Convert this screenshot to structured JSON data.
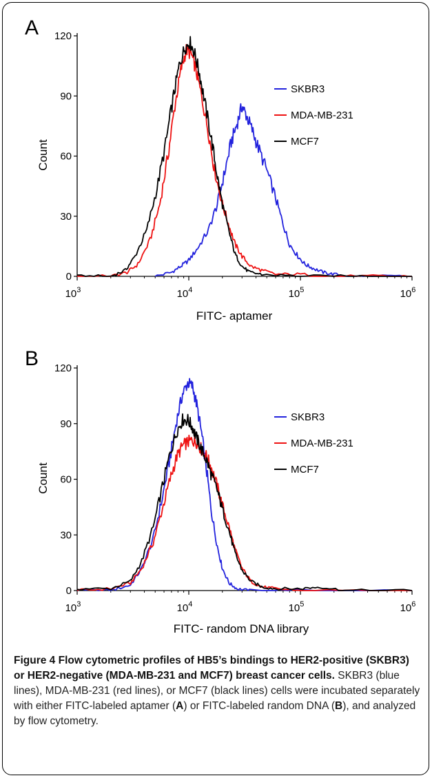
{
  "caption": {
    "bold": "Figure 4 Flow cytometric profiles of HB5’s bindings to HER2-positive (SKBR3) or HER2-negative (MDA-MB-231 and MCF7) breast cancer cells.",
    "p1": " SKBR3 (blue lines), MDA-MB-231 (red lines), or MCF7 (black lines) cells were incubated separately with either FITC-labeled aptamer (",
    "bA": "A",
    "p2": ") or FITC-labeled random DNA (",
    "bB": "B",
    "p3": "), and analyzed by flow cytometry."
  },
  "colors": {
    "SKBR3": "#2222dd",
    "MDA-MB-231": "#ee1111",
    "MCF7": "#000000"
  },
  "chart_data": [
    {
      "type": "line",
      "panel_label": "A",
      "xlabel": "FITC- aptamer",
      "ylabel": "Count",
      "xscale": "log",
      "xlim": [
        1000,
        1000000
      ],
      "ylim": [
        0,
        120
      ],
      "xticks": [
        {
          "v": 1000,
          "b": "10",
          "e": "3"
        },
        {
          "v": 10000,
          "b": "10",
          "e": "4"
        },
        {
          "v": 100000,
          "b": "10",
          "e": "5"
        },
        {
          "v": 1000000,
          "b": "10",
          "e": "6"
        }
      ],
      "yticks": [
        0,
        30,
        60,
        90,
        120
      ],
      "legend": "right",
      "series": [
        {
          "name": "SKBR3",
          "color": "#2222dd",
          "x": [
            5000,
            7000,
            8500,
            10000,
            12000,
            15000,
            18000,
            21000,
            24000,
            27000,
            30000,
            33000,
            37000,
            42000,
            50000,
            60000,
            70000,
            80000,
            95000,
            110000,
            130000,
            160000,
            200000,
            300000,
            500000,
            1000000
          ],
          "y": [
            0,
            2,
            5,
            8,
            14,
            23,
            36,
            52,
            67,
            76,
            85,
            80,
            73,
            64,
            53,
            39,
            26,
            16,
            10,
            6,
            4,
            2,
            1,
            0,
            0,
            0
          ]
        },
        {
          "name": "MDA-MB-231",
          "color": "#ee1111",
          "x": [
            1000,
            2000,
            2800,
            3500,
            4500,
            5500,
            6500,
            7500,
            8500,
            9500,
            10500,
            11500,
            13000,
            15000,
            17000,
            20000,
            23000,
            26000,
            30000,
            36000,
            45000,
            60000,
            100000,
            200000,
            500000,
            1000000
          ],
          "y": [
            0,
            0,
            2,
            6,
            18,
            36,
            60,
            85,
            103,
            113,
            111,
            104,
            90,
            72,
            53,
            36,
            25,
            16,
            10,
            5,
            3,
            1,
            1,
            0,
            0,
            0
          ]
        },
        {
          "name": "MCF7",
          "color": "#000000",
          "x": [
            1000,
            2000,
            2700,
            3300,
            4200,
            5200,
            6200,
            7200,
            8200,
            9200,
            10200,
            11200,
            12500,
            14000,
            16000,
            18000,
            20000,
            23000,
            26000,
            30000,
            35000,
            45000,
            100000,
            300000,
            1000000
          ],
          "y": [
            0,
            0,
            3,
            10,
            23,
            44,
            66,
            88,
            105,
            114,
            117,
            112,
            101,
            86,
            68,
            50,
            36,
            22,
            11,
            5,
            2,
            1,
            0,
            0,
            0
          ]
        }
      ]
    },
    {
      "type": "line",
      "panel_label": "B",
      "xlabel": "FITC- random DNA library",
      "ylabel": "Count",
      "xscale": "log",
      "xlim": [
        1000,
        1000000
      ],
      "ylim": [
        0,
        120
      ],
      "xticks": [
        {
          "v": 1000,
          "b": "10",
          "e": "3"
        },
        {
          "v": 10000,
          "b": "10",
          "e": "4"
        },
        {
          "v": 100000,
          "b": "10",
          "e": "5"
        },
        {
          "v": 1000000,
          "b": "10",
          "e": "6"
        }
      ],
      "yticks": [
        0,
        30,
        60,
        90,
        120
      ],
      "legend": "right",
      "series": [
        {
          "name": "SKBR3",
          "color": "#2222dd",
          "x": [
            1000,
            2000,
            3000,
            3800,
            4800,
            5800,
            6800,
            7800,
            8800,
            9800,
            10800,
            11800,
            13000,
            14500,
            16000,
            18000,
            20000,
            23000,
            27000,
            35000,
            100000,
            1000000
          ],
          "y": [
            0,
            0,
            3,
            12,
            28,
            50,
            72,
            92,
            106,
            112,
            110,
            100,
            85,
            64,
            42,
            24,
            12,
            4,
            1,
            0,
            0,
            0
          ]
        },
        {
          "name": "MDA-MB-231",
          "color": "#ee1111",
          "x": [
            1000,
            2000,
            3000,
            3800,
            4800,
            5800,
            6800,
            7800,
            8800,
            9800,
            10800,
            11800,
            13000,
            14500,
            16000,
            18000,
            20000,
            23000,
            26000,
            30000,
            36000,
            45000,
            60000,
            100000,
            1000000
          ],
          "y": [
            0,
            1,
            4,
            12,
            26,
            44,
            60,
            72,
            78,
            80,
            81,
            80,
            76,
            72,
            66,
            56,
            46,
            34,
            22,
            12,
            5,
            2,
            1,
            0,
            0
          ]
        },
        {
          "name": "MCF7",
          "color": "#000000",
          "x": [
            1000,
            2000,
            3000,
            3800,
            4800,
            5800,
            6800,
            7800,
            8800,
            9800,
            10800,
            11800,
            13000,
            14500,
            16000,
            18000,
            20000,
            23000,
            26000,
            30000,
            36000,
            45000,
            60000,
            100000,
            150000,
            250000,
            1000000
          ],
          "y": [
            1,
            1,
            5,
            16,
            34,
            56,
            74,
            86,
            92,
            92,
            88,
            82,
            76,
            70,
            62,
            54,
            44,
            32,
            20,
            11,
            5,
            2,
            1,
            1,
            2,
            0,
            0
          ]
        }
      ]
    }
  ]
}
